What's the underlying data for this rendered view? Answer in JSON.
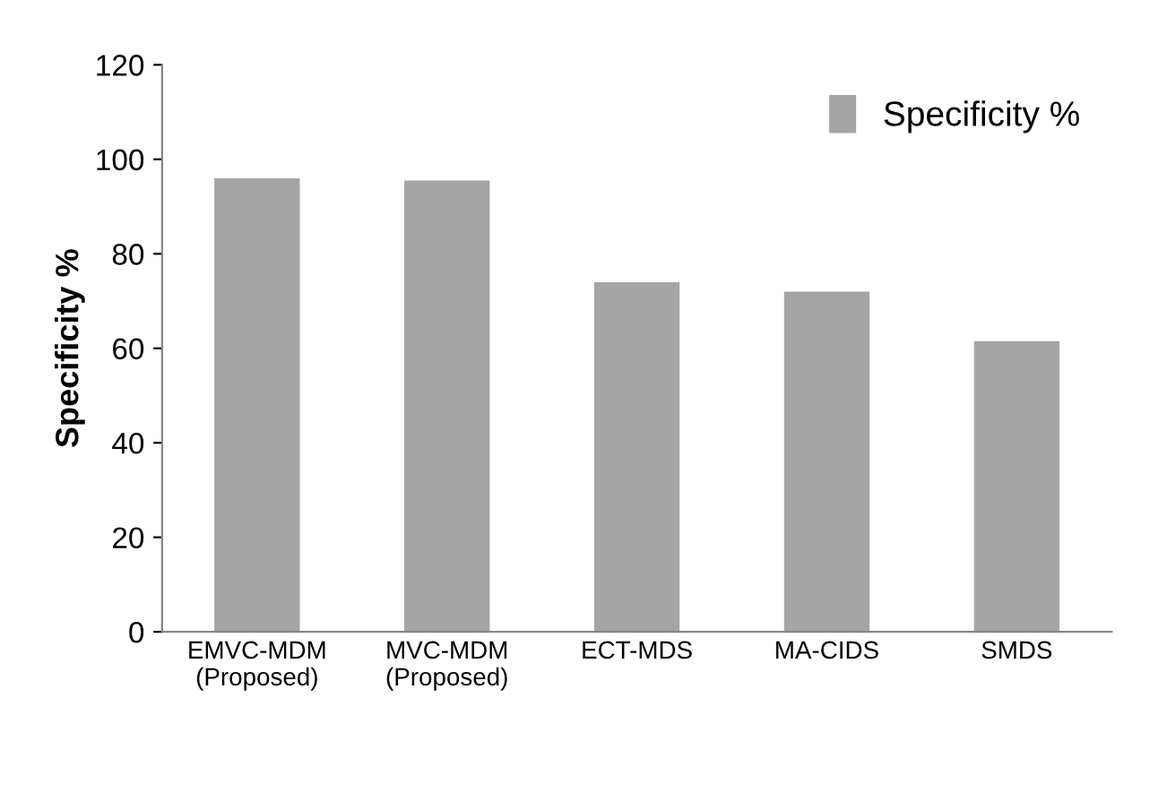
{
  "chart_data": {
    "type": "bar",
    "ylabel": "Specificity %",
    "categories": [
      "EMVC-MDM\n(Proposed)",
      "MVC-MDM\n(Proposed)",
      "ECT-MDS",
      "MA-CIDS",
      "SMDS"
    ],
    "series": [
      {
        "name": "Specificity %",
        "color": "#a5a5a5",
        "values": [
          96,
          95.5,
          74,
          72,
          61.5
        ]
      }
    ],
    "ylim": [
      0,
      120
    ],
    "yticks": [
      0,
      20,
      40,
      60,
      80,
      100,
      120
    ],
    "grid": false,
    "legend": "top right"
  }
}
